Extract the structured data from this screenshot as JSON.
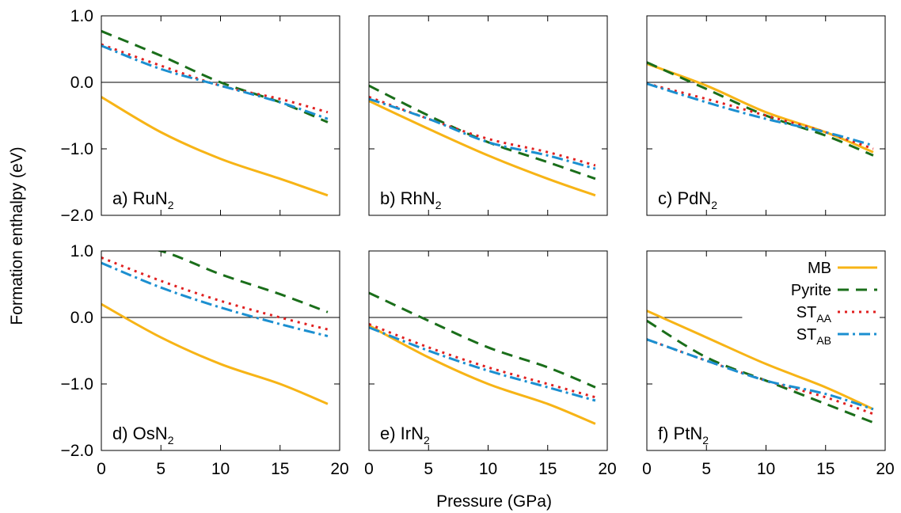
{
  "chart_data": {
    "type": "line",
    "xlabel": "Pressure (GPa)",
    "ylabel": "Formation enthalpy (eV)",
    "xlim": [
      0,
      20
    ],
    "ylim": [
      -2.0,
      1.0
    ],
    "xticks": [
      "0",
      "5",
      "10",
      "15",
      "20"
    ],
    "yticks": [
      "−2.0",
      "−1.0",
      "0.0",
      "1.0"
    ],
    "x": [
      0,
      5,
      10,
      15,
      19
    ],
    "colors": {
      "MB": "#f7b416",
      "Pyrite": "#1a6e1a",
      "ST_AA": "#e02020",
      "ST_AB": "#1b8fd0"
    },
    "legend": {
      "placement": "top-right of panel f",
      "entries": [
        {
          "name": "MB",
          "sub": ""
        },
        {
          "name": "Pyrite",
          "sub": ""
        },
        {
          "name": "ST",
          "sub": "AA"
        },
        {
          "name": "ST",
          "sub": "AB"
        }
      ]
    },
    "panels": [
      {
        "label_prefix": "a) RuN",
        "label_sub": "2",
        "series": {
          "MB": [
            -0.22,
            -0.75,
            -1.15,
            -1.45,
            -1.7
          ],
          "Pyrite": [
            0.77,
            0.4,
            0.0,
            -0.3,
            -0.6
          ],
          "ST_AA": [
            0.57,
            0.25,
            -0.05,
            -0.25,
            -0.45
          ],
          "ST_AB": [
            0.55,
            0.2,
            -0.05,
            -0.3,
            -0.55
          ]
        }
      },
      {
        "label_prefix": "b) RhN",
        "label_sub": "2",
        "series": {
          "MB": [
            -0.28,
            -0.7,
            -1.1,
            -1.45,
            -1.7
          ],
          "Pyrite": [
            -0.05,
            -0.5,
            -0.9,
            -1.2,
            -1.45
          ],
          "ST_AA": [
            -0.22,
            -0.55,
            -0.85,
            -1.05,
            -1.25
          ],
          "ST_AB": [
            -0.25,
            -0.55,
            -0.9,
            -1.1,
            -1.3
          ]
        }
      },
      {
        "label_prefix": "c) PdN",
        "label_sub": "2",
        "series": {
          "MB": [
            0.28,
            -0.05,
            -0.45,
            -0.75,
            -1.05
          ],
          "Pyrite": [
            0.3,
            -0.1,
            -0.5,
            -0.8,
            -1.1
          ],
          "ST_AA": [
            -0.02,
            -0.25,
            -0.5,
            -0.75,
            -1.0
          ],
          "ST_AB": [
            -0.02,
            -0.3,
            -0.55,
            -0.75,
            -0.95
          ]
        }
      },
      {
        "label_prefix": "d) OsN",
        "label_sub": "2",
        "series": {
          "MB": [
            0.2,
            -0.3,
            -0.7,
            -1.0,
            -1.3
          ],
          "Pyrite": [
            1.15,
            1.0,
            0.65,
            0.35,
            0.08
          ],
          "ST_AA": [
            0.9,
            0.55,
            0.25,
            0.0,
            -0.18
          ],
          "ST_AB": [
            0.82,
            0.45,
            0.15,
            -0.1,
            -0.28
          ]
        }
      },
      {
        "label_prefix": "e) IrN",
        "label_sub": "2",
        "series": {
          "MB": [
            -0.12,
            -0.6,
            -1.0,
            -1.3,
            -1.6
          ],
          "Pyrite": [
            0.37,
            -0.05,
            -0.45,
            -0.75,
            -1.05
          ],
          "ST_AA": [
            -0.1,
            -0.45,
            -0.75,
            -1.0,
            -1.2
          ],
          "ST_AB": [
            -0.15,
            -0.5,
            -0.8,
            -1.05,
            -1.25
          ]
        }
      },
      {
        "label_prefix": "f) PtN",
        "label_sub": "2",
        "series": {
          "MB": [
            0.1,
            -0.3,
            -0.7,
            -1.05,
            -1.38
          ],
          "Pyrite": [
            -0.05,
            -0.6,
            -0.95,
            -1.3,
            -1.58
          ],
          "ST_AA": [
            -0.33,
            -0.65,
            -0.95,
            -1.2,
            -1.45
          ],
          "ST_AB": [
            -0.33,
            -0.65,
            -0.95,
            -1.15,
            -1.38
          ]
        }
      }
    ]
  }
}
